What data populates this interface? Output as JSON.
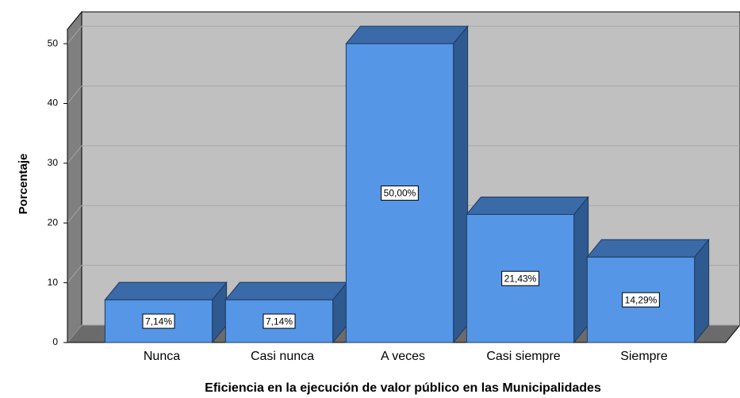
{
  "chart_data": {
    "type": "bar3d",
    "x_label": "Eficiencia en la ejecución de valor público en las Municipalidades",
    "y_label": "Porcentaje",
    "categories": [
      "Nunca",
      "Casi nunca",
      "A veces",
      "Casi siempre",
      "Siempre"
    ],
    "values": [
      7.14,
      7.14,
      50,
      21.43,
      14.29
    ],
    "value_labels": [
      "7,14%",
      "7,14%",
      "50,00%",
      "21,43%",
      "14,29%"
    ],
    "color": "#5596e6",
    "ylim": [
      0,
      52.4
    ],
    "yticks": [
      0,
      10,
      20,
      30,
      40,
      50
    ],
    "grid": true
  }
}
